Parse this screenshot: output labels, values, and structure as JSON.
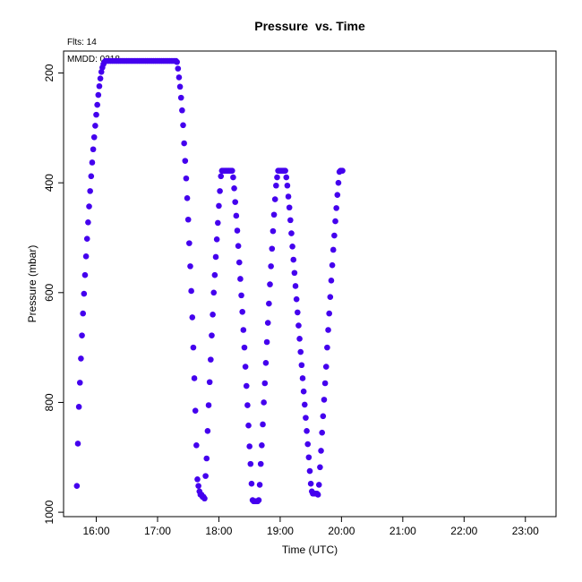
{
  "header": {
    "flts_label": "Flts: 14",
    "mmdd_label": "MMDD: 0218"
  },
  "chart_data": {
    "type": "scatter",
    "title": "Pressure  vs. Time",
    "xlabel": "Time (UTC)",
    "ylabel": "Pressure (mbar)",
    "xlim": [
      "15:28",
      "23:30"
    ],
    "ylim": [
      1008,
      160
    ],
    "y_reversed": true,
    "grid": false,
    "x_ticks": [
      "16:00",
      "17:00",
      "18:00",
      "19:00",
      "20:00",
      "21:00",
      "22:00",
      "23:00"
    ],
    "y_ticks": [
      200,
      400,
      600,
      800,
      1000
    ],
    "point_color": "#4400ee",
    "points": [
      [
        "15:41",
        952
      ],
      [
        "15:42",
        875
      ],
      [
        "15:43",
        808
      ],
      [
        "15:44",
        764
      ],
      [
        "15:45",
        720
      ],
      [
        "15:46",
        678
      ],
      [
        "15:47",
        638
      ],
      [
        "15:48",
        602
      ],
      [
        "15:49",
        568
      ],
      [
        "15:50",
        534
      ],
      [
        "15:51",
        502
      ],
      [
        "15:52",
        472
      ],
      [
        "15:53",
        443
      ],
      [
        "15:54",
        415
      ],
      [
        "15:55",
        388
      ],
      [
        "15:56",
        363
      ],
      [
        "15:57",
        339
      ],
      [
        "15:58",
        317
      ],
      [
        "15:59",
        296
      ],
      [
        "16:00",
        276
      ],
      [
        "16:01",
        258
      ],
      [
        "16:02",
        240
      ],
      [
        "16:03",
        224
      ],
      [
        "16:04",
        210
      ],
      [
        "16:05",
        198
      ],
      [
        "16:06",
        190
      ],
      [
        "16:07",
        184
      ],
      [
        "16:08",
        180
      ],
      [
        "16:09",
        178
      ],
      [
        "16:10",
        178
      ],
      [
        "16:12",
        178
      ],
      [
        "16:14",
        178
      ],
      [
        "16:16",
        178
      ],
      [
        "16:18",
        178
      ],
      [
        "16:20",
        178
      ],
      [
        "16:22",
        178
      ],
      [
        "16:24",
        178
      ],
      [
        "16:26",
        178
      ],
      [
        "16:28",
        178
      ],
      [
        "16:30",
        178
      ],
      [
        "16:32",
        178
      ],
      [
        "16:34",
        178
      ],
      [
        "16:36",
        178
      ],
      [
        "16:38",
        178
      ],
      [
        "16:40",
        178
      ],
      [
        "16:42",
        178
      ],
      [
        "16:44",
        178
      ],
      [
        "16:46",
        178
      ],
      [
        "16:48",
        178
      ],
      [
        "16:50",
        178
      ],
      [
        "16:52",
        178
      ],
      [
        "16:54",
        178
      ],
      [
        "16:56",
        178
      ],
      [
        "16:58",
        178
      ],
      [
        "17:00",
        178
      ],
      [
        "17:02",
        178
      ],
      [
        "17:04",
        178
      ],
      [
        "17:06",
        178
      ],
      [
        "17:08",
        178
      ],
      [
        "17:10",
        178
      ],
      [
        "17:12",
        178
      ],
      [
        "17:14",
        178
      ],
      [
        "17:16",
        178
      ],
      [
        "17:18",
        178
      ],
      [
        "17:19",
        180
      ],
      [
        "17:20",
        192
      ],
      [
        "17:21",
        208
      ],
      [
        "17:22",
        225
      ],
      [
        "17:23",
        245
      ],
      [
        "17:24",
        268
      ],
      [
        "17:25",
        295
      ],
      [
        "17:26",
        328
      ],
      [
        "17:27",
        360
      ],
      [
        "17:28",
        392
      ],
      [
        "17:29",
        428
      ],
      [
        "17:30",
        467
      ],
      [
        "17:31",
        510
      ],
      [
        "17:32",
        552
      ],
      [
        "17:33",
        597
      ],
      [
        "17:34",
        645
      ],
      [
        "17:35",
        700
      ],
      [
        "17:36",
        756
      ],
      [
        "17:37",
        815
      ],
      [
        "17:38",
        878
      ],
      [
        "17:39",
        940
      ],
      [
        "17:40",
        952
      ],
      [
        "17:41",
        962
      ],
      [
        "17:42",
        968
      ],
      [
        "17:43",
        968
      ],
      [
        "17:44",
        972
      ],
      [
        "17:45",
        972
      ],
      [
        "17:46",
        975
      ],
      [
        "17:47",
        934
      ],
      [
        "17:48",
        902
      ],
      [
        "17:49",
        852
      ],
      [
        "17:50",
        805
      ],
      [
        "17:51",
        763
      ],
      [
        "17:52",
        722
      ],
      [
        "17:53",
        678
      ],
      [
        "17:54",
        640
      ],
      [
        "17:55",
        600
      ],
      [
        "17:56",
        568
      ],
      [
        "17:57",
        535
      ],
      [
        "17:58",
        503
      ],
      [
        "17:59",
        473
      ],
      [
        "18:00",
        442
      ],
      [
        "18:01",
        415
      ],
      [
        "18:02",
        388
      ],
      [
        "18:03",
        378
      ],
      [
        "18:04",
        378
      ],
      [
        "18:05",
        378
      ],
      [
        "18:06",
        378
      ],
      [
        "18:07",
        378
      ],
      [
        "18:08",
        378
      ],
      [
        "18:09",
        378
      ],
      [
        "18:10",
        378
      ],
      [
        "18:11",
        378
      ],
      [
        "18:12",
        378
      ],
      [
        "18:13",
        378
      ],
      [
        "18:14",
        390
      ],
      [
        "18:15",
        410
      ],
      [
        "18:16",
        435
      ],
      [
        "18:17",
        460
      ],
      [
        "18:18",
        487
      ],
      [
        "18:19",
        515
      ],
      [
        "18:20",
        545
      ],
      [
        "18:21",
        575
      ],
      [
        "18:22",
        605
      ],
      [
        "18:23",
        635
      ],
      [
        "18:24",
        668
      ],
      [
        "18:25",
        700
      ],
      [
        "18:26",
        735
      ],
      [
        "18:27",
        770
      ],
      [
        "18:28",
        805
      ],
      [
        "18:29",
        842
      ],
      [
        "18:30",
        880
      ],
      [
        "18:31",
        912
      ],
      [
        "18:32",
        948
      ],
      [
        "18:33",
        978
      ],
      [
        "18:34",
        980
      ],
      [
        "18:35",
        980
      ],
      [
        "18:36",
        980
      ],
      [
        "18:37",
        980
      ],
      [
        "18:38",
        980
      ],
      [
        "18:39",
        978
      ],
      [
        "18:40",
        950
      ],
      [
        "18:41",
        912
      ],
      [
        "18:42",
        878
      ],
      [
        "18:43",
        840
      ],
      [
        "18:44",
        800
      ],
      [
        "18:45",
        765
      ],
      [
        "18:46",
        728
      ],
      [
        "18:47",
        690
      ],
      [
        "18:48",
        655
      ],
      [
        "18:49",
        620
      ],
      [
        "18:50",
        585
      ],
      [
        "18:51",
        552
      ],
      [
        "18:52",
        520
      ],
      [
        "18:53",
        488
      ],
      [
        "18:54",
        458
      ],
      [
        "18:55",
        430
      ],
      [
        "18:56",
        405
      ],
      [
        "18:57",
        390
      ],
      [
        "18:58",
        378
      ],
      [
        "18:59",
        378
      ],
      [
        "19:00",
        378
      ],
      [
        "19:01",
        378
      ],
      [
        "19:02",
        378
      ],
      [
        "19:03",
        378
      ],
      [
        "19:04",
        378
      ],
      [
        "19:05",
        378
      ],
      [
        "19:06",
        390
      ],
      [
        "19:07",
        405
      ],
      [
        "19:08",
        425
      ],
      [
        "19:09",
        445
      ],
      [
        "19:10",
        468
      ],
      [
        "19:11",
        492
      ],
      [
        "19:12",
        516
      ],
      [
        "19:13",
        540
      ],
      [
        "19:14",
        564
      ],
      [
        "19:15",
        588
      ],
      [
        "19:16",
        612
      ],
      [
        "19:17",
        636
      ],
      [
        "19:18",
        660
      ],
      [
        "19:19",
        684
      ],
      [
        "19:20",
        708
      ],
      [
        "19:21",
        732
      ],
      [
        "19:22",
        756
      ],
      [
        "19:23",
        780
      ],
      [
        "19:24",
        804
      ],
      [
        "19:25",
        828
      ],
      [
        "19:26",
        852
      ],
      [
        "19:27",
        876
      ],
      [
        "19:28",
        900
      ],
      [
        "19:29",
        925
      ],
      [
        "19:30",
        948
      ],
      [
        "19:31",
        962
      ],
      [
        "19:32",
        966
      ],
      [
        "19:33",
        966
      ],
      [
        "19:34",
        966
      ],
      [
        "19:35",
        966
      ],
      [
        "19:36",
        966
      ],
      [
        "19:37",
        968
      ],
      [
        "19:38",
        950
      ],
      [
        "19:39",
        918
      ],
      [
        "19:40",
        888
      ],
      [
        "19:41",
        855
      ],
      [
        "19:42",
        825
      ],
      [
        "19:43",
        795
      ],
      [
        "19:44",
        765
      ],
      [
        "19:45",
        735
      ],
      [
        "19:46",
        700
      ],
      [
        "19:47",
        668
      ],
      [
        "19:48",
        638
      ],
      [
        "19:49",
        608
      ],
      [
        "19:50",
        578
      ],
      [
        "19:51",
        550
      ],
      [
        "19:52",
        522
      ],
      [
        "19:53",
        496
      ],
      [
        "19:54",
        470
      ],
      [
        "19:55",
        446
      ],
      [
        "19:56",
        422
      ],
      [
        "19:57",
        400
      ],
      [
        "19:58",
        380
      ],
      [
        "19:59",
        378
      ],
      [
        "20:00",
        378
      ],
      [
        "20:01",
        378
      ]
    ]
  }
}
